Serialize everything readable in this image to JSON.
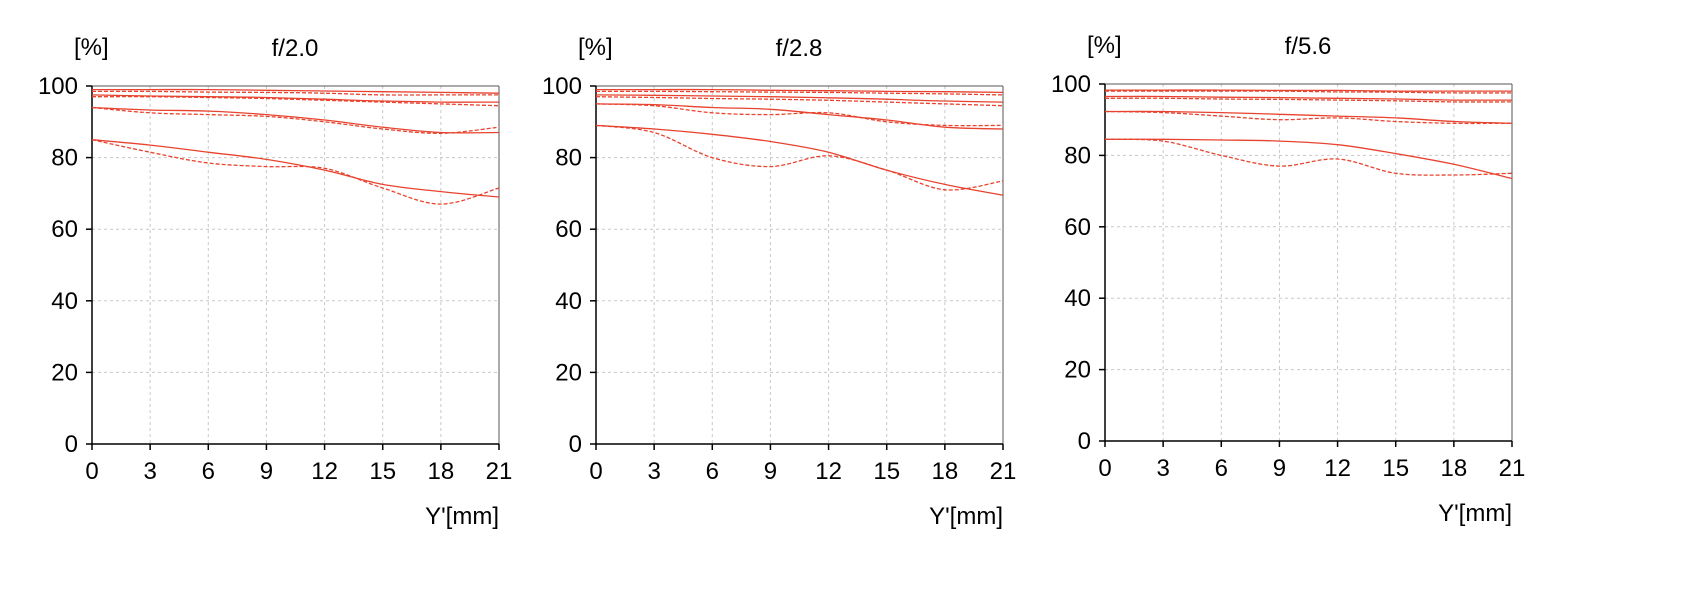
{
  "line_color": "#e8432e",
  "grid_color": "#c8c8c8",
  "chart_data": [
    {
      "type": "line",
      "title": "f/2.0",
      "ylabel": "[%]",
      "xlabel": "Y'[mm]",
      "xlim": [
        0,
        21
      ],
      "ylim": [
        0,
        100
      ],
      "xticks": [
        0,
        3,
        6,
        9,
        12,
        15,
        18,
        21
      ],
      "yticks": [
        0,
        20,
        40,
        60,
        80,
        100
      ],
      "grid": true,
      "x": [
        0,
        3,
        6,
        9,
        12,
        15,
        18,
        21
      ],
      "series": [
        {
          "style": "solid",
          "values": [
            99,
            99,
            99,
            98.8,
            98.6,
            98.4,
            98.2,
            98
          ]
        },
        {
          "style": "dashed",
          "values": [
            98.5,
            98.5,
            98.3,
            98.2,
            98,
            97.5,
            97.5,
            97.5
          ]
        },
        {
          "style": "solid",
          "values": [
            97.5,
            97.2,
            97,
            96.8,
            96.3,
            95.8,
            95.5,
            95.5
          ]
        },
        {
          "style": "dashed",
          "values": [
            97,
            97,
            96.8,
            96.5,
            96,
            95.5,
            95,
            94.5
          ]
        },
        {
          "style": "solid",
          "values": [
            94,
            93.3,
            93,
            92,
            90.5,
            88.5,
            87,
            87
          ]
        },
        {
          "style": "dashed",
          "values": [
            94,
            92.5,
            92,
            91.5,
            90,
            88,
            86.8,
            88.5
          ]
        },
        {
          "style": "solid",
          "values": [
            85,
            83.5,
            81.5,
            79.5,
            76.5,
            72.5,
            70.5,
            69
          ]
        },
        {
          "style": "dashed",
          "values": [
            85,
            81.5,
            78.5,
            77.5,
            77,
            71.5,
            67,
            71.5
          ]
        }
      ]
    },
    {
      "type": "line",
      "title": "f/2.8",
      "ylabel": "[%]",
      "xlabel": "Y'[mm]",
      "xlim": [
        0,
        21
      ],
      "ylim": [
        0,
        100
      ],
      "xticks": [
        0,
        3,
        6,
        9,
        12,
        15,
        18,
        21
      ],
      "yticks": [
        0,
        20,
        40,
        60,
        80,
        100
      ],
      "grid": true,
      "x": [
        0,
        3,
        6,
        9,
        12,
        15,
        18,
        21
      ],
      "series": [
        {
          "style": "solid",
          "values": [
            99,
            99,
            99,
            98.8,
            98.7,
            98.5,
            98.4,
            98.2
          ]
        },
        {
          "style": "dashed",
          "values": [
            98.5,
            98.5,
            98.4,
            98.3,
            98.2,
            98,
            97.8,
            97.5
          ]
        },
        {
          "style": "solid",
          "values": [
            97.5,
            97.4,
            97.2,
            97,
            96.7,
            96.3,
            95.8,
            95.5
          ]
        },
        {
          "style": "dashed",
          "values": [
            97,
            96.8,
            96.5,
            96.3,
            96,
            95.5,
            95,
            94.5
          ]
        },
        {
          "style": "solid",
          "values": [
            95,
            94.8,
            94,
            93.5,
            92,
            90.5,
            88.5,
            88
          ]
        },
        {
          "style": "dashed",
          "values": [
            95,
            94.5,
            92.5,
            92,
            92.5,
            90,
            89,
            89
          ]
        },
        {
          "style": "solid",
          "values": [
            89,
            88,
            86.5,
            84.5,
            81.5,
            76.5,
            72.5,
            69.5
          ]
        },
        {
          "style": "dashed",
          "values": [
            89,
            87,
            80,
            77.5,
            80.5,
            76.5,
            71,
            73.5
          ]
        }
      ]
    },
    {
      "type": "line",
      "title": "f/5.6",
      "ylabel": "[%]",
      "xlabel": "Y'[mm]",
      "xlim": [
        0,
        21
      ],
      "ylim": [
        0,
        100
      ],
      "xticks": [
        0,
        3,
        6,
        9,
        12,
        15,
        18,
        21
      ],
      "yticks": [
        0,
        20,
        40,
        60,
        80,
        100
      ],
      "grid": true,
      "x": [
        0,
        3,
        6,
        9,
        12,
        15,
        18,
        21
      ],
      "series": [
        {
          "style": "solid",
          "values": [
            98.3,
            98.3,
            98.3,
            98.2,
            98.2,
            98,
            98,
            98
          ]
        },
        {
          "style": "dashed",
          "values": [
            98,
            98,
            98,
            98,
            97.8,
            97.7,
            97.5,
            97.5
          ]
        },
        {
          "style": "solid",
          "values": [
            96.5,
            96.5,
            96.3,
            96.2,
            96,
            95.8,
            95.5,
            95.5
          ]
        },
        {
          "style": "dashed",
          "values": [
            96,
            96,
            95.8,
            95.7,
            95.5,
            95.3,
            95,
            95
          ]
        },
        {
          "style": "solid",
          "values": [
            92.3,
            92.3,
            92,
            91.5,
            91,
            90.5,
            89.5,
            89
          ]
        },
        {
          "style": "dashed",
          "values": [
            92.3,
            92,
            91,
            90,
            90.5,
            89.5,
            89,
            89
          ]
        },
        {
          "style": "solid",
          "values": [
            84.5,
            84.5,
            84.3,
            84,
            83,
            80.5,
            77.5,
            73.5
          ]
        },
        {
          "style": "dashed",
          "values": [
            84.5,
            84,
            80,
            77,
            79,
            75,
            74.5,
            75
          ]
        }
      ]
    }
  ]
}
